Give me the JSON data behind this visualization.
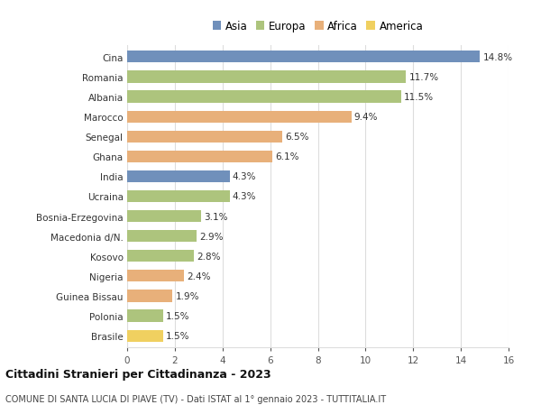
{
  "countries": [
    "Cina",
    "Romania",
    "Albania",
    "Marocco",
    "Senegal",
    "Ghana",
    "India",
    "Ucraina",
    "Bosnia-Erzegovina",
    "Macedonia d/N.",
    "Kosovo",
    "Nigeria",
    "Guinea Bissau",
    "Polonia",
    "Brasile"
  ],
  "values": [
    14.8,
    11.7,
    11.5,
    9.4,
    6.5,
    6.1,
    4.3,
    4.3,
    3.1,
    2.9,
    2.8,
    2.4,
    1.9,
    1.5,
    1.5
  ],
  "continents": [
    "Asia",
    "Europa",
    "Europa",
    "Africa",
    "Africa",
    "Africa",
    "Asia",
    "Europa",
    "Europa",
    "Europa",
    "Europa",
    "Africa",
    "Africa",
    "Europa",
    "America"
  ],
  "colors": {
    "Asia": "#7090bb",
    "Europa": "#adc47d",
    "Africa": "#e8b07a",
    "America": "#f0d060"
  },
  "legend_labels": [
    "Asia",
    "Europa",
    "Africa",
    "America"
  ],
  "legend_colors": [
    "#7090bb",
    "#adc47d",
    "#e8b07a",
    "#f0d060"
  ],
  "title": "Cittadini Stranieri per Cittadinanza - 2023",
  "subtitle": "COMUNE DI SANTA LUCIA DI PIAVE (TV) - Dati ISTAT al 1° gennaio 2023 - TUTTITALIA.IT",
  "xlim": [
    0,
    16
  ],
  "xticks": [
    0,
    2,
    4,
    6,
    8,
    10,
    12,
    14,
    16
  ],
  "background_color": "#ffffff",
  "bar_height": 0.6,
  "grid_color": "#dddddd"
}
